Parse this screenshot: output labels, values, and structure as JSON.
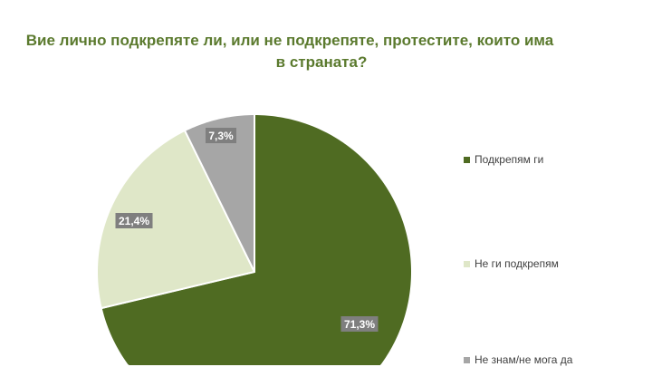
{
  "chart_data": {
    "type": "pie",
    "title": [
      "Вие лично подкрепяте ли, или не подкрепяте, протестите, които има",
      "в страната?"
    ],
    "slices": [
      {
        "name": "Подкрепям ги",
        "value": 71.3,
        "label": "71,3%",
        "color": "#4f6b22"
      },
      {
        "name": "Не ги подкрепям",
        "value": 21.4,
        "label": "21,4%",
        "color": "#dfe7c8"
      },
      {
        "name": "Не знам/не мога да",
        "value": 7.3,
        "label": "7,3%",
        "color": "#a6a6a6"
      }
    ],
    "start": "top",
    "direction": "clockwise",
    "legend_position": "right"
  }
}
